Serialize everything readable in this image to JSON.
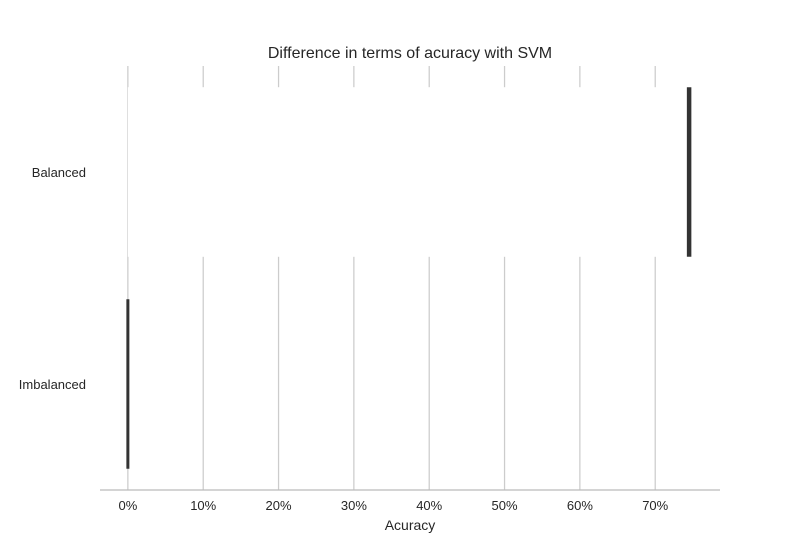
{
  "chart_data": {
    "type": "bar",
    "orientation": "horizontal",
    "title": "Difference in terms of acuracy with SVM",
    "xlabel": "Acuracy",
    "ylabel": "",
    "categories": [
      "Balanced",
      "Imbalanced"
    ],
    "values": [
      0.745,
      0.0
    ],
    "error_range": [
      [
        0.745,
        0.745
      ],
      [
        0.0,
        0.0
      ]
    ],
    "xlim": [
      -0.037,
      0.786
    ],
    "xticks": [
      0,
      0.1,
      0.2,
      0.3,
      0.4,
      0.5,
      0.6,
      0.7
    ],
    "xtick_labels": [
      "0%",
      "10%",
      "20%",
      "30%",
      "40%",
      "50%",
      "60%",
      "70%"
    ],
    "grid": "vertical",
    "legend": "none",
    "colors": {
      "bar": "#ffffff",
      "error_bar": "#333333",
      "grid": "#cccccc",
      "axis": "#bbbbbb",
      "text": "#262626"
    }
  }
}
